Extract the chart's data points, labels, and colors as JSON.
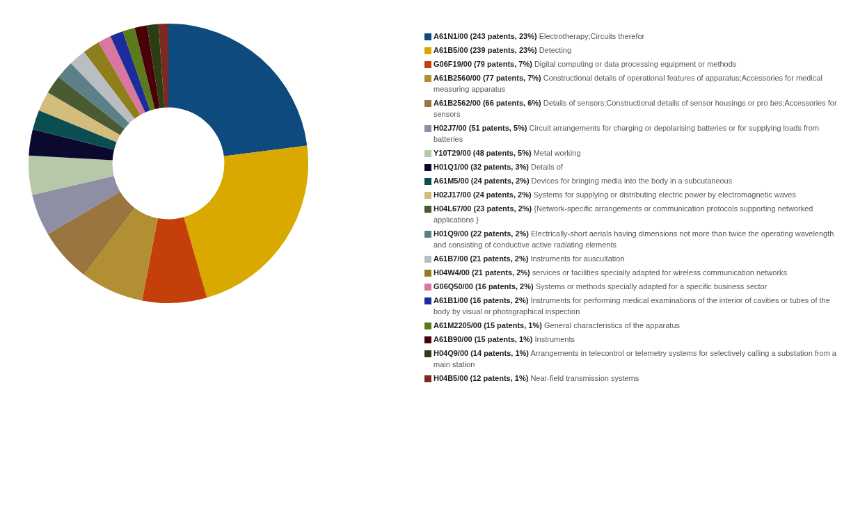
{
  "chart_data": {
    "type": "donut",
    "legend": "right",
    "categories": [
      "A61N1/00 (243 patents, 23%) Electrotherapy;Circuits therefor",
      "A61B5/00 (239 patents, 23%) Detecting",
      "G06F19/00 (79 patents, 7%) Digital computing or data processing equipment or methods",
      "A61B2560/00 (77 patents, 7%) Constructional details of operational features of apparatus;Accessories for medical measuring apparatus",
      "A61B2562/00 (66 patents, 6%) Details of sensors;Constructional details of sensor housings or pro bes;Accessories for sensors",
      "H02J7/00 (51 patents, 5%) Circuit arrangements for charging or depolarising batteries or for supplying loads from batteries",
      "Y10T29/00 (48 patents, 5%) Metal working",
      "H01Q1/00 (32 patents, 3%) Details of",
      "A61M5/00 (24 patents, 2%) Devices for bringing media into the body in a subcutaneous",
      "H02J17/00 (24 patents, 2%) Systems for supplying or distributing electric power by electromagnetic waves",
      "H04L67/00 (23 patents, 2%) {Network-specific arrangements or communication protocols supporting networked applications }",
      "H01Q9/00 (22 patents, 2%) Electrically-short aerials having dimensions not more than twice the operating wavelength and consisting of conductive active radiating elements",
      "A61B7/00 (21 patents, 2%) Instruments for auscultation",
      "H04W4/00 (21 patents, 2%) services or facilities specially adapted for wireless communication networks",
      "G06Q50/00 (16 patents, 2%) Systems or methods specially adapted for a specific business sector",
      "A61B1/00 (16 patents, 2%) Instruments for performing medical examinations of the interior of cavities or tubes of the body by visual or photographical inspection",
      "A61M2205/00 (15 patents, 1%) General characteristics of the apparatus",
      "A61B90/00 (15 patents, 1%) Instruments",
      "H04Q9/00 (14 patents, 1%) Arrangements in telecontrol or telemetry systems for selectively calling a substation from a main station",
      "H04B5/00 (12 patents, 1%) Near-field transmission systems"
    ],
    "values": [
      243,
      239,
      79,
      77,
      66,
      51,
      48,
      32,
      24,
      24,
      23,
      22,
      21,
      21,
      16,
      16,
      15,
      15,
      14,
      12
    ],
    "colors": [
      "#0e4a7e",
      "#d9a900",
      "#c53f0b",
      "#b38f34",
      "#9a7540",
      "#8e8ea4",
      "#b5c9a8",
      "#0b0a2e",
      "#0b4e52",
      "#d3bd7c",
      "#4a5a33",
      "#5d8088",
      "#b9bec3",
      "#8f7e1c",
      "#d977a1",
      "#1c2c9c",
      "#5b7a1a",
      "#4a0008",
      "#2c3d14",
      "#7a2a22"
    ]
  }
}
